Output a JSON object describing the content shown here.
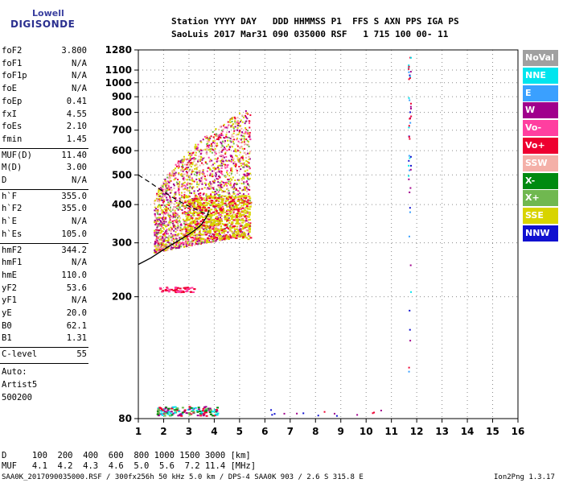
{
  "logo": {
    "top": "Lowell",
    "bottom": "DIGISONDE"
  },
  "header": {
    "line1": "Station YYYY DAY   DDD HHMMSS P1  FFS S AXN PPS IGA PS",
    "line2": "SaoLuis 2017 Mar31 090 035000 RSF   1 715 100 00- 11"
  },
  "params_group1": [
    {
      "k": "foF2",
      "v": "3.800"
    },
    {
      "k": "foF1",
      "v": "N/A"
    },
    {
      "k": "foF1p",
      "v": "N/A"
    },
    {
      "k": "foE",
      "v": "N/A"
    },
    {
      "k": "foEp",
      "v": "0.41"
    },
    {
      "k": "fxI",
      "v": "4.55"
    },
    {
      "k": "foEs",
      "v": "2.10"
    },
    {
      "k": "fmin",
      "v": "1.45"
    }
  ],
  "params_group2": [
    {
      "k": "MUF(D)",
      "v": "11.40"
    },
    {
      "k": "M(D)",
      "v": "3.00"
    },
    {
      "k": "D",
      "v": "N/A"
    }
  ],
  "params_group3": [
    {
      "k": "h`F",
      "v": "355.0"
    },
    {
      "k": "h`F2",
      "v": "355.0"
    },
    {
      "k": "h`E",
      "v": "N/A"
    },
    {
      "k": "h`Es",
      "v": "105.0"
    }
  ],
  "params_group4": [
    {
      "k": "hmF2",
      "v": "344.2"
    },
    {
      "k": "hmF1",
      "v": "N/A"
    },
    {
      "k": "hmE",
      "v": "110.0"
    },
    {
      "k": "yF2",
      "v": "53.6"
    },
    {
      "k": "yF1",
      "v": "N/A"
    },
    {
      "k": "yE",
      "v": "20.0"
    },
    {
      "k": "B0",
      "v": "62.1"
    },
    {
      "k": "B1",
      "v": "1.31"
    }
  ],
  "clevel": {
    "k": "C-level",
    "v": "55"
  },
  "auto": [
    "Auto:",
    "Artist5",
    "500200"
  ],
  "footer": {
    "d_row": "D     100  200  400  600  800 1000 1500 3000 [km]",
    "muf_row": "MUF   4.1  4.2  4.3  4.6  5.0  5.6  7.2 11.4 [MHz]",
    "file_line": "SAA0K_2017090035000.RSF / 300fx256h 50 kHz 5.0 km / DPS-4 SAA0K 903 / 2.6 S 315.8 E",
    "version": "Ion2Png 1.3.17"
  },
  "legend": [
    {
      "label": "NoVal",
      "color": "#a0a0a0"
    },
    {
      "label": "NNE",
      "color": "#00e5ee"
    },
    {
      "label": "E",
      "color": "#3aa0ff"
    },
    {
      "label": "W",
      "color": "#a0008c"
    },
    {
      "label": "Vo-",
      "color": "#ff3fa0"
    },
    {
      "label": "Vo+",
      "color": "#ee0030"
    },
    {
      "label": "SSW",
      "color": "#f4b0a8"
    },
    {
      "label": "X-",
      "color": "#008a10"
    },
    {
      "label": "X+",
      "color": "#70b850"
    },
    {
      "label": "SSE",
      "color": "#d8d400"
    },
    {
      "label": "NNW",
      "color": "#1010d0"
    }
  ],
  "chart_data": {
    "type": "scatter",
    "xlabel": "",
    "ylabel": "",
    "xlim": [
      1,
      16
    ],
    "ylim": [
      80,
      1280
    ],
    "y_scale": "log",
    "x_ticks": [
      1,
      2,
      3,
      4,
      5,
      6,
      7,
      8,
      9,
      10,
      11,
      12,
      13,
      14,
      15,
      16
    ],
    "y_ticks": [
      80,
      200,
      300,
      400,
      500,
      600,
      700,
      800,
      900,
      1000,
      1100,
      1280
    ],
    "grid": true,
    "profile_curve": {
      "x": [
        1.0,
        1.5,
        2.0,
        2.5,
        3.0,
        3.3,
        3.5,
        3.7,
        3.8
      ],
      "y": [
        255,
        268,
        285,
        302,
        320,
        333,
        345,
        365,
        385
      ]
    },
    "dashed_curve": {
      "x": [
        1.0,
        1.5,
        2.0,
        2.5,
        3.0,
        3.5,
        3.8
      ],
      "y": [
        500,
        470,
        440,
        415,
        395,
        378,
        370
      ]
    }
  }
}
